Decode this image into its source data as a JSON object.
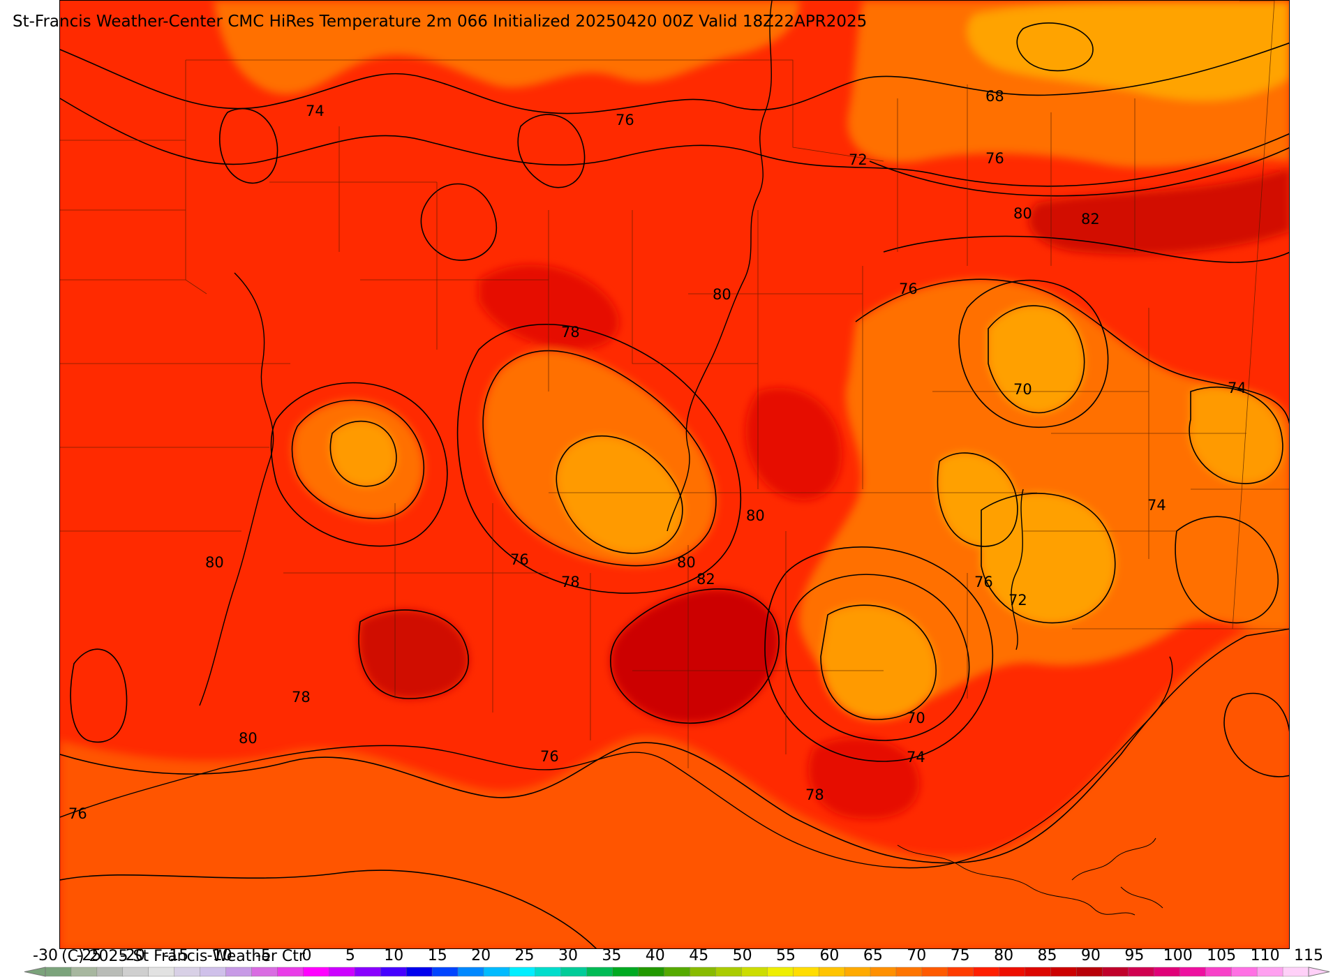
{
  "title": "St-Francis Weather-Center CMC HiRes Temperature 2m  066 Initialized 20250420 00Z Valid 18Z22APR2025",
  "copyright": "(C) 2025 St Francis Weather Ctr",
  "colors": {
    "gulf": "#ff5400",
    "land_base": "#ff2a00",
    "warm_core": "#e00d00",
    "hot_core": "#c80500",
    "mild": "#ff7000",
    "cool": "#ff9a00",
    "coolest": "#ffb000"
  },
  "colorbar": {
    "ticks": [
      "-30",
      "-25",
      "-20",
      "-15",
      "-10",
      "-5",
      "0",
      "5",
      "10",
      "15",
      "20",
      "25",
      "30",
      "35",
      "40",
      "45",
      "50",
      "55",
      "60",
      "65",
      "70",
      "75",
      "80",
      "85",
      "90",
      "95",
      "100",
      "105",
      "110",
      "115"
    ],
    "colors": [
      "#7ba37b",
      "#a7b79f",
      "#b9bcb7",
      "#cfcfcf",
      "#e2e2e2",
      "#d8d0e6",
      "#cfc0ea",
      "#c79ae6",
      "#d96ce2",
      "#e93ce8",
      "#ff00ff",
      "#cc00ff",
      "#8800ff",
      "#4400ff",
      "#0000ee",
      "#0044ff",
      "#0088ff",
      "#00bbff",
      "#00eeff",
      "#00ddcc",
      "#00cc99",
      "#00bb55",
      "#00aa22",
      "#229900",
      "#55aa00",
      "#88bb00",
      "#aacc00",
      "#ccdd00",
      "#eeee00",
      "#ffdd00",
      "#ffc400",
      "#ffaa00",
      "#ff9000",
      "#ff7500",
      "#ff5a00",
      "#ff3c00",
      "#ff1e00",
      "#ee0e00",
      "#dd0600",
      "#cc0000",
      "#b80008",
      "#c0002a",
      "#d00050",
      "#e00078",
      "#ee10a0",
      "#f840c8",
      "#ff70e4",
      "#ffa0f0",
      "#ffd0f8"
    ]
  },
  "contour_labels": [
    "74",
    "76",
    "68",
    "72",
    "76",
    "80",
    "82",
    "76",
    "80",
    "78",
    "70",
    "74",
    "80",
    "76",
    "74",
    "80",
    "82",
    "78",
    "80",
    "76",
    "72",
    "78",
    "80",
    "70",
    "74",
    "76",
    "76",
    "78"
  ]
}
